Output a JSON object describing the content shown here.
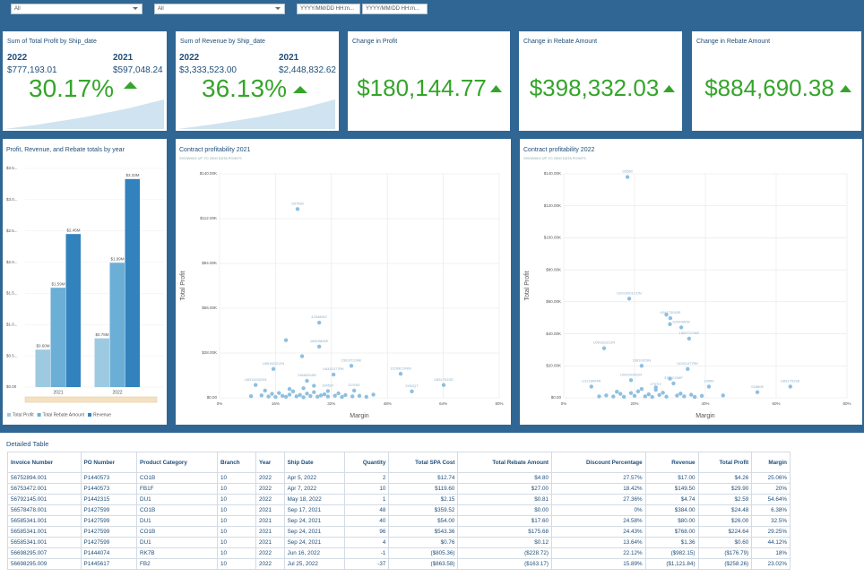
{
  "filters": {
    "dropdowns": [
      "All",
      "All"
    ],
    "date_inputs": [
      "YYYY/MM/DD HH:m...",
      "YYYY/MM/DD HH:m..."
    ]
  },
  "kpis": [
    {
      "title": "Sum of Total Profit by Ship_date",
      "years": [
        {
          "year": "2022",
          "value": "$777,193.01"
        },
        {
          "year": "2021",
          "value": "$597,048.24"
        }
      ],
      "change": "30.17%"
    },
    {
      "title": "Sum of Revenue by Ship_date",
      "years": [
        {
          "year": "2022",
          "value": "$3,333,523.00"
        },
        {
          "year": "2021",
          "value": "$2,448,832.62"
        }
      ],
      "change": "36.13%"
    },
    {
      "title": "Change in Profit",
      "change": "$180,144.77"
    },
    {
      "title": "Change in Rebate Amount",
      "change": "$398,332.03"
    },
    {
      "title": "Change in Rebate Amount",
      "change": "$884,690.38"
    }
  ],
  "chart_data": [
    {
      "type": "bar",
      "title": "Profit, Revenue, and Rebate totals by year",
      "categories": [
        "2021",
        "2022"
      ],
      "series": [
        {
          "name": "Total Profit",
          "color": "#9ecae1",
          "values": [
            600000,
            780000
          ],
          "value_labels": [
            "$0.60M",
            "$0.78M"
          ]
        },
        {
          "name": "Total Rebate Amount",
          "color": "#6baed6",
          "values": [
            1590000,
            1990000
          ],
          "value_labels": [
            "$1.59M",
            "$1.99M"
          ]
        },
        {
          "name": "Revenue",
          "color": "#3182bd",
          "values": [
            2450000,
            3330000
          ],
          "value_labels": [
            "$2.45M",
            "$3.33M"
          ]
        }
      ],
      "ylim": [
        0,
        3500000
      ],
      "yticks": [
        {
          "value": 0,
          "label": "$0.00"
        },
        {
          "value": 500000,
          "label": "$0.5..."
        },
        {
          "value": 1000000,
          "label": "$1.0..."
        },
        {
          "value": 1500000,
          "label": "$1.5..."
        },
        {
          "value": 2000000,
          "label": "$2.0..."
        },
        {
          "value": 2500000,
          "label": "$2.5..."
        },
        {
          "value": 3000000,
          "label": "$3.0..."
        },
        {
          "value": 3500000,
          "label": "$3.5..."
        }
      ],
      "grid": true,
      "legend": "bottom"
    },
    {
      "type": "scatter",
      "title": "Contract profitability 2021",
      "subtitle": "SHOWING UP TO 2500 DATA POINTS",
      "x_label": "Margin",
      "y_label": "Total Profit",
      "color": "#8fbfe0",
      "x": [
        22.3,
        28.5,
        19,
        28.5,
        23.6,
        37.7,
        15.4,
        32.6,
        51.8,
        64.1,
        10.3,
        25,
        38.5,
        55,
        31,
        12,
        14,
        15,
        16,
        17,
        18,
        19,
        20,
        21,
        22,
        23,
        24,
        25,
        26,
        27,
        28,
        29,
        30,
        31,
        33,
        34,
        35,
        36,
        38,
        40,
        42,
        13,
        9,
        44,
        24,
        27,
        20
      ],
      "values": [
        118000,
        47000,
        36000,
        32000,
        26000,
        20000,
        18000,
        14500,
        15000,
        8000,
        8000,
        10600,
        4500,
        4000,
        4200,
        1500,
        800,
        2500,
        500,
        3000,
        1200,
        600,
        2000,
        4000,
        900,
        1800,
        300,
        2600,
        1100,
        3500,
        700,
        1500,
        2200,
        800,
        1300,
        2800,
        500,
        1700,
        900,
        1200,
        600,
        4500,
        1000,
        2000,
        6000,
        7500,
        5500
      ],
      "point_labels": [
        "S57080",
        "42548667",
        null,
        "16819846E",
        null,
        "15637CONE",
        "U8916G212N",
        "U8411077RK",
        "12299CONW",
        "U831751SE",
        "U8316G024N",
        "1368020AR",
        "21/SKE",
        "2952QT",
        "16452F",
        null,
        null,
        null,
        null,
        null,
        null,
        null,
        null,
        null,
        null,
        null,
        null,
        null,
        null,
        null,
        null,
        null,
        null,
        null,
        null,
        null,
        null,
        null,
        null,
        null,
        null,
        null,
        null,
        null,
        null,
        null,
        null
      ],
      "xlim": [
        0,
        80
      ],
      "xticks": [
        {
          "value": 0,
          "label": "0%"
        },
        {
          "value": 16,
          "label": "16%"
        },
        {
          "value": 32,
          "label": "32%"
        },
        {
          "value": 48,
          "label": "48%"
        },
        {
          "value": 64,
          "label": "64%"
        },
        {
          "value": 80,
          "label": "80%"
        }
      ],
      "ylim": [
        0,
        140000
      ],
      "yticks": [
        {
          "value": 0,
          "label": "$0.00"
        },
        {
          "value": 28000,
          "label": "$28.00K"
        },
        {
          "value": 56000,
          "label": "$56.00K"
        },
        {
          "value": 84000,
          "label": "$84.00K"
        },
        {
          "value": 112000,
          "label": "$112.00K"
        },
        {
          "value": 140000,
          "label": "$140.00K"
        }
      ],
      "grid": true
    },
    {
      "type": "scatter",
      "title": "Contract profitability 2022",
      "subtitle": "SHOWING UP TO 2500 DATA POINTS",
      "x_label": "Margin",
      "y_label": "Total Profit",
      "color": "#8fbfe0",
      "x": [
        18,
        18.5,
        30.1,
        33.2,
        35.4,
        11.4,
        35,
        22,
        19,
        7.8,
        26,
        31,
        41,
        54.7,
        64,
        29,
        30,
        12,
        14,
        16,
        17,
        19,
        20,
        21,
        23,
        24,
        25,
        27,
        28,
        29,
        32,
        33,
        34,
        36,
        37,
        39,
        10,
        15,
        22,
        26,
        30,
        45
      ],
      "values": [
        138000,
        62000,
        49800,
        44000,
        37000,
        31000,
        18000,
        20000,
        11000,
        7000,
        5000,
        9000,
        7000,
        3500,
        7000,
        52000,
        46000,
        1500,
        800,
        2500,
        600,
        3000,
        1200,
        4000,
        900,
        2200,
        500,
        1800,
        3200,
        700,
        1400,
        2600,
        900,
        1900,
        500,
        1200,
        900,
        3800,
        5500,
        6500,
        12000,
        1500
      ],
      "point_labels": [
        "S5580",
        "U2019001CON",
        "U04170043E",
        "S2944W52",
        "15637CONE",
        "U0916G212N",
        "U0411077RK",
        "16810029N",
        "U0915G022N",
        "U1218004R",
        "2707IY",
        "3720COMP",
        "14950",
        "S2880E",
        "U831751SE",
        null,
        null,
        null,
        null,
        null,
        null,
        null,
        null,
        null,
        null,
        null,
        null,
        null,
        null,
        null,
        null,
        null,
        null,
        null,
        null,
        null,
        null,
        null,
        null,
        null,
        null,
        null
      ],
      "xlim": [
        0,
        80
      ],
      "xticks": [
        {
          "value": 0,
          "label": "0%"
        },
        {
          "value": 20,
          "label": "20%"
        },
        {
          "value": 40,
          "label": "40%"
        },
        {
          "value": 60,
          "label": "60%"
        },
        {
          "value": 80,
          "label": "80%"
        }
      ],
      "ylim": [
        0,
        140000
      ],
      "yticks": [
        {
          "value": 0,
          "label": "$0.00"
        },
        {
          "value": 20000,
          "label": "$20.00K"
        },
        {
          "value": 40000,
          "label": "$40.00K"
        },
        {
          "value": 60000,
          "label": "$60.00K"
        },
        {
          "value": 80000,
          "label": "$80.00K"
        },
        {
          "value": 100000,
          "label": "$100.00K"
        },
        {
          "value": 120000,
          "label": "$120.00K"
        },
        {
          "value": 140000,
          "label": "$140.00K"
        }
      ],
      "grid": true
    }
  ],
  "table": {
    "title": "Detailed Table",
    "columns": [
      "Invoice Number",
      "PO Number",
      "Product Category",
      "Branch",
      "Year",
      "Ship Date",
      "Quantity",
      "Total SPA Cost",
      "Total Rebate Amount",
      "Discount Percentage",
      "Revenue",
      "Total Profit",
      "Margin"
    ],
    "rows": [
      [
        "56752894.001",
        "P1440573",
        "CO1B",
        "10",
        "2022",
        "Apr 5, 2022",
        "2",
        "$12.74",
        "$4.80",
        "27.57%",
        "$17.00",
        "$4.26",
        "25.06%"
      ],
      [
        "56753472.001",
        "P1440573",
        "FB1F",
        "10",
        "2022",
        "Apr 7, 2022",
        "10",
        "$119.60",
        "$27.00",
        "18.42%",
        "$149.50",
        "$29.90",
        "20%"
      ],
      [
        "56792145.001",
        "P1442315",
        "DU1",
        "10",
        "2022",
        "May 18, 2022",
        "1",
        "$2.15",
        "$0.81",
        "27.36%",
        "$4.74",
        "$2.59",
        "54.64%"
      ],
      [
        "56578478.001",
        "P1427599",
        "CO1B",
        "10",
        "2021",
        "Sep 17, 2021",
        "48",
        "$359.52",
        "$0.00",
        "0%",
        "$384.00",
        "$24.48",
        "6.38%"
      ],
      [
        "56585341.001",
        "P1427599",
        "DU1",
        "10",
        "2021",
        "Sep 24, 2021",
        "40",
        "$54.00",
        "$17.60",
        "24.58%",
        "$80.00",
        "$26.00",
        "32.5%"
      ],
      [
        "56585341.001",
        "P1427599",
        "CO1B",
        "10",
        "2021",
        "Sep 24, 2021",
        "96",
        "$543.36",
        "$175.68",
        "24.43%",
        "$768.00",
        "$224.64",
        "29.25%"
      ],
      [
        "56585341.001",
        "P1427599",
        "DU1",
        "10",
        "2021",
        "Sep 24, 2021",
        "4",
        "$0.76",
        "$0.12",
        "13.64%",
        "$1.36",
        "$0.60",
        "44.12%"
      ],
      [
        "56698295.007",
        "P1444074",
        "RK7B",
        "10",
        "2022",
        "Jun 16, 2022",
        "-1",
        "($805.36)",
        "($228.72)",
        "22.12%",
        "($982.15)",
        "($176.79)",
        "18%"
      ],
      [
        "56698295.009",
        "P1445617",
        "FB2",
        "10",
        "2022",
        "Jul 25, 2022",
        "-37",
        "($863.58)",
        "($163.17)",
        "15.89%",
        "($1,121.84)",
        "($258.26)",
        "23.02%"
      ]
    ]
  }
}
